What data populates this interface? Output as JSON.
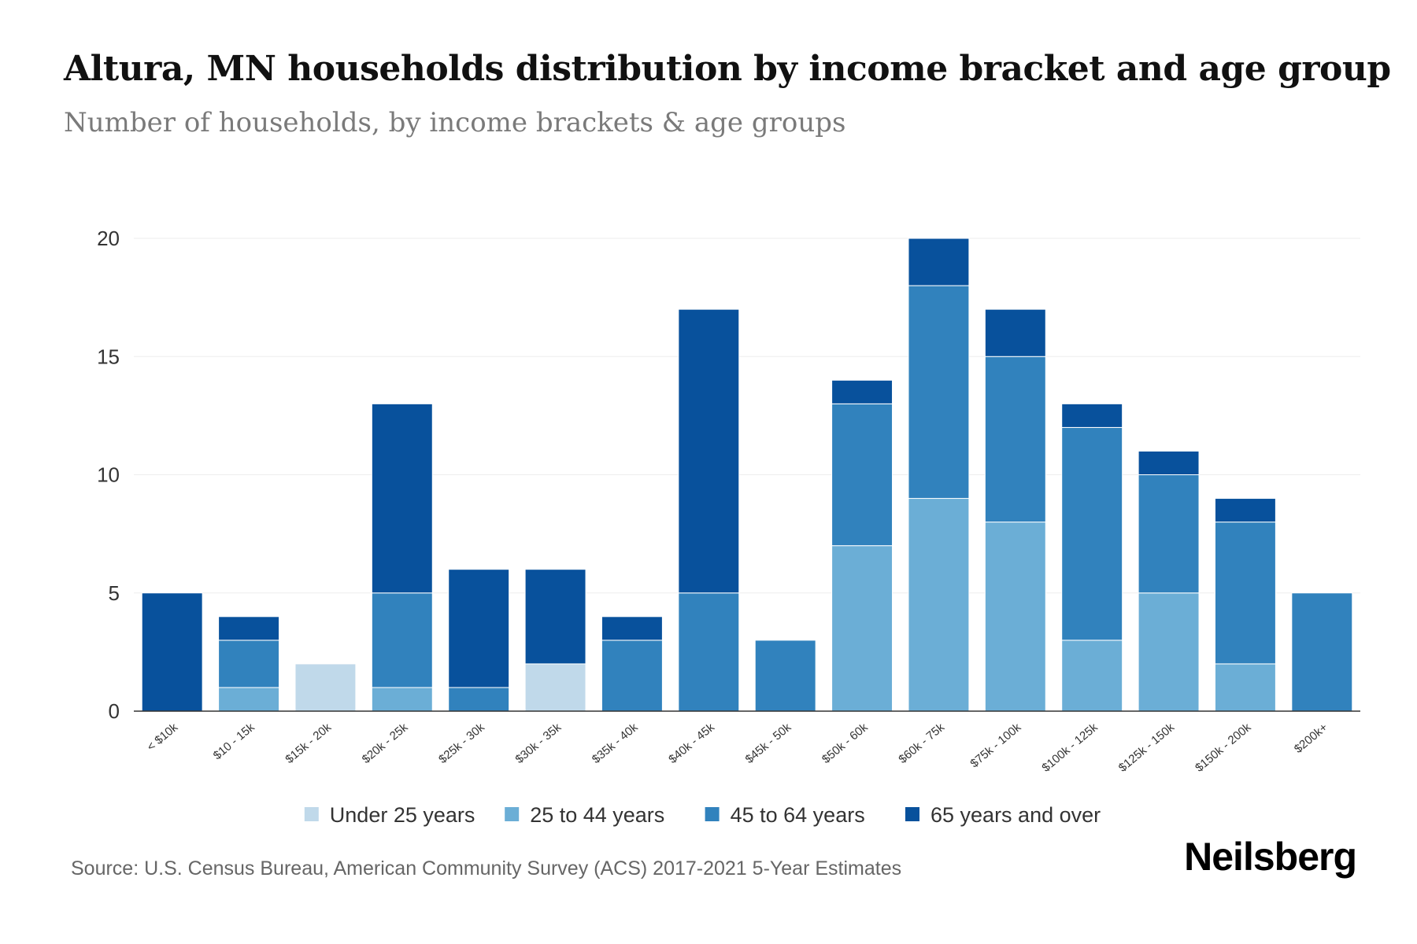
{
  "header": {
    "title": "Altura, MN households distribution by income bracket and age group",
    "subtitle": "Number of households, by income brackets & age groups"
  },
  "footer": {
    "source": "Source: U.S. Census Bureau, American Community Survey (ACS) 2017-2021 5-Year Estimates",
    "brand": "Neilsberg"
  },
  "chart_data": {
    "type": "bar",
    "stacked": true,
    "title": "Altura, MN households distribution by income bracket and age group",
    "subtitle": "Number of households, by income brackets & age groups",
    "xlabel": "",
    "ylabel": "",
    "ylim": [
      0,
      20
    ],
    "yticks": [
      0,
      5,
      10,
      15,
      20
    ],
    "grid": true,
    "legend_position": "bottom",
    "categories": [
      "< $10k",
      "$10 - 15k",
      "$15k - 20k",
      "$20k - 25k",
      "$25k - 30k",
      "$30k - 35k",
      "$35k - 40k",
      "$40k - 45k",
      "$45k - 50k",
      "$50k - 60k",
      "$60k - 75k",
      "$75k - 100k",
      "$100k - 125k",
      "$125k - 150k",
      "$150k - 200k",
      "$200k+"
    ],
    "series": [
      {
        "name": "Under 25 years",
        "color": "#c0d9ea",
        "values": [
          0,
          0,
          2,
          0,
          0,
          2,
          0,
          0,
          0,
          0,
          0,
          0,
          0,
          0,
          0,
          0
        ]
      },
      {
        "name": "25 to 44 years",
        "color": "#6baed6",
        "values": [
          0,
          1,
          0,
          1,
          0,
          0,
          0,
          0,
          0,
          7,
          9,
          8,
          3,
          5,
          2,
          0
        ]
      },
      {
        "name": "45 to 64 years",
        "color": "#3182bd",
        "values": [
          0,
          2,
          0,
          4,
          1,
          0,
          3,
          5,
          3,
          6,
          9,
          7,
          9,
          5,
          6,
          5
        ]
      },
      {
        "name": "65 years and over",
        "color": "#08519c",
        "values": [
          5,
          1,
          0,
          8,
          5,
          4,
          1,
          12,
          0,
          1,
          2,
          2,
          1,
          1,
          1,
          0
        ]
      }
    ]
  }
}
